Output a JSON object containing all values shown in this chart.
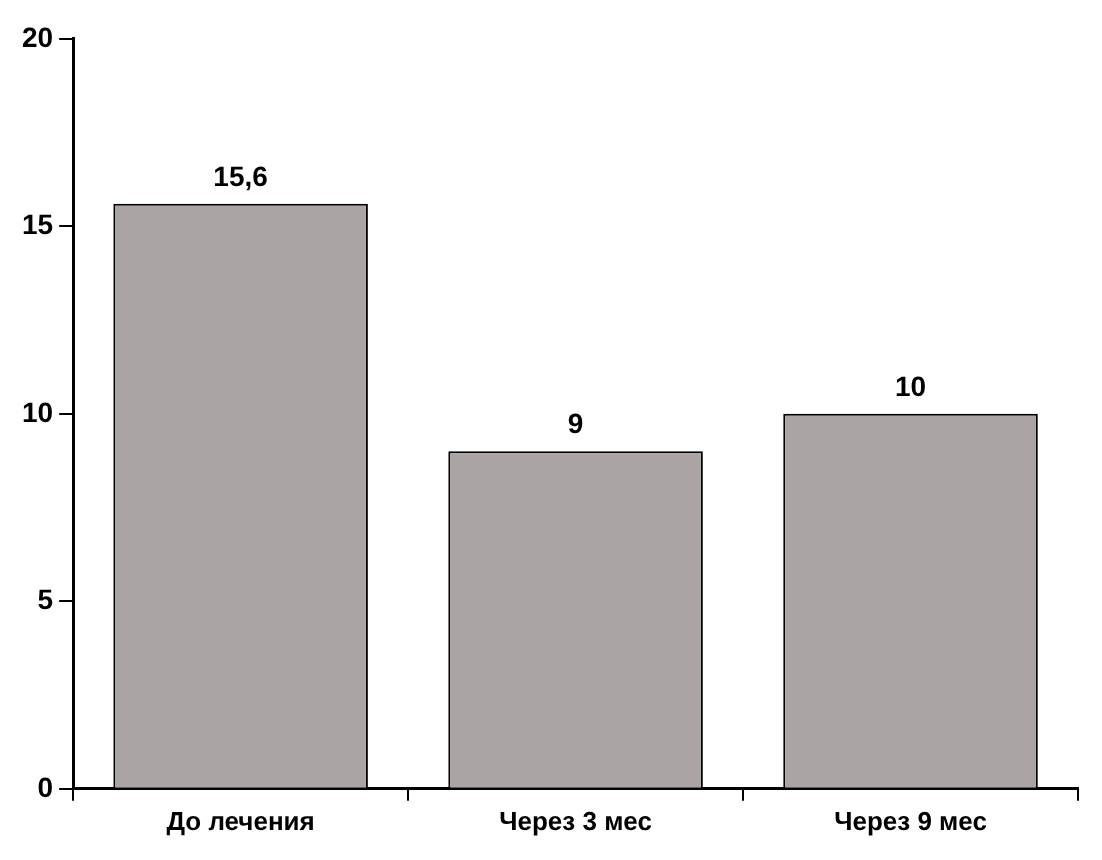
{
  "chart_data": {
    "type": "bar",
    "categories": [
      "До лечения",
      "Через 3 мес",
      "Через 9 мес"
    ],
    "values": [
      15.6,
      9,
      10
    ],
    "value_labels": [
      "15,6",
      "9",
      "10"
    ],
    "color": "#aba4a4",
    "ylim": [
      0,
      20
    ],
    "yticks": [
      0,
      5,
      10,
      15,
      20
    ],
    "grid": false,
    "legend": false
  }
}
